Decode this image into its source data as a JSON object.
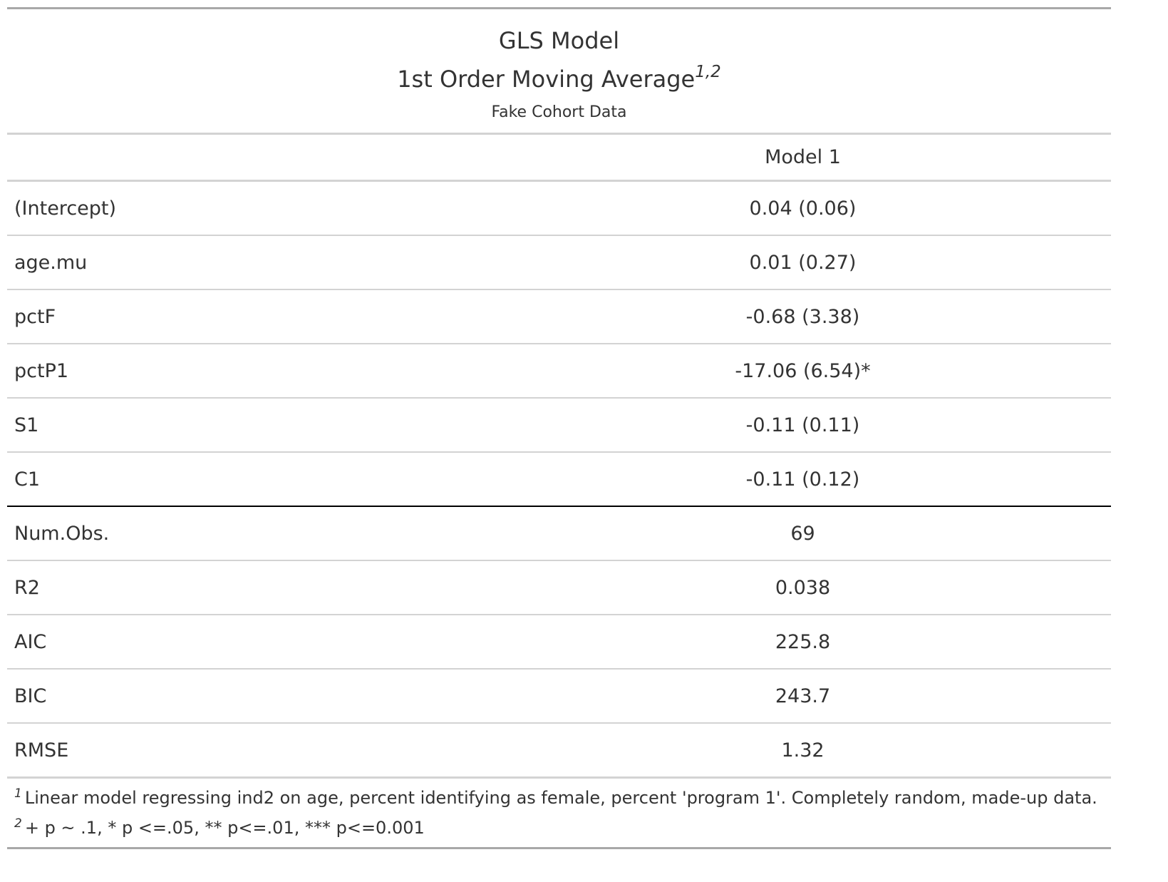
{
  "title": {
    "line1": "GLS Model",
    "line2": "1st Order Moving Average",
    "line2_footnote_marks": "1,2",
    "subtitle": "Fake Cohort Data"
  },
  "header": {
    "label": "",
    "model": "Model 1"
  },
  "coefficients": [
    {
      "term": "(Intercept)",
      "value": "0.04 (0.06)"
    },
    {
      "term": "age.mu",
      "value": "0.01 (0.27)"
    },
    {
      "term": "pctF",
      "value": "-0.68 (3.38)"
    },
    {
      "term": "pctP1",
      "value": "-17.06 (6.54)*"
    },
    {
      "term": "S1",
      "value": "-0.11 (0.11)"
    },
    {
      "term": "C1",
      "value": "-0.11 (0.12)"
    }
  ],
  "goodness_of_fit": [
    {
      "term": "Num.Obs.",
      "value": "69"
    },
    {
      "term": "R2",
      "value": "0.038"
    },
    {
      "term": "AIC",
      "value": "225.8"
    },
    {
      "term": "BIC",
      "value": "243.7"
    },
    {
      "term": "RMSE",
      "value": "1.32"
    }
  ],
  "notes": [
    {
      "mark": "1",
      "text": "Linear model regressing ind2 on age, percent identifying as female, percent 'program 1'. Completely random, made-up data."
    },
    {
      "mark": "2",
      "text": "+ p ~ .1, * p <=.05, ** p<=.01, *** p<=0.001"
    }
  ]
}
